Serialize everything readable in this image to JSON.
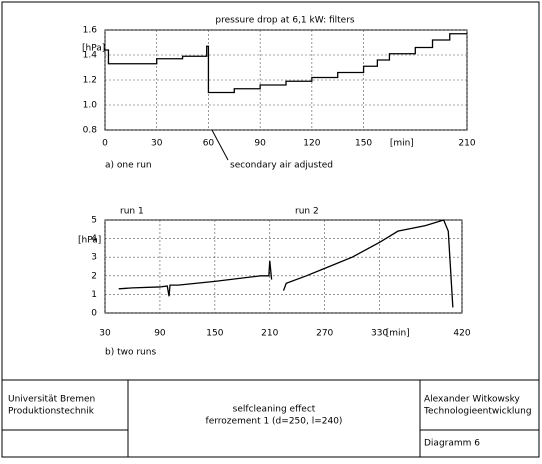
{
  "chart_data": [
    {
      "type": "line",
      "title": "pressure drop at 6,1 kW: filters",
      "y_label": "[hPa]",
      "x_label": "[min]",
      "subtitle": "a) one run",
      "annotation": "secondary air adjusted",
      "xlim": [
        0,
        210
      ],
      "xticks": [
        0,
        30,
        60,
        90,
        120,
        150,
        210
      ],
      "ylim": [
        0.8,
        1.6
      ],
      "yticks": [
        0.8,
        {
          "value": 1,
          "label": "1.0"
        },
        1.2,
        1.4,
        1.6
      ],
      "grid": true,
      "color": "#000000",
      "x": [
        0,
        2,
        2,
        30,
        30,
        45,
        45,
        59,
        59,
        60,
        60,
        75,
        75,
        90,
        90,
        105,
        105,
        120,
        120,
        135,
        135,
        150,
        150,
        158,
        158,
        165,
        165,
        180,
        180,
        190,
        190,
        200,
        200,
        210
      ],
      "values": [
        1.44,
        1.44,
        1.33,
        1.33,
        1.37,
        1.37,
        1.39,
        1.39,
        1.47,
        1.47,
        1.1,
        1.1,
        1.13,
        1.13,
        1.16,
        1.16,
        1.19,
        1.19,
        1.22,
        1.22,
        1.26,
        1.26,
        1.31,
        1.31,
        1.36,
        1.36,
        1.41,
        1.41,
        1.46,
        1.46,
        1.52,
        1.52,
        1.57,
        1.57
      ]
    },
    {
      "type": "line",
      "y_label": "[hPa]",
      "x_label": "[min]",
      "subtitle": "b) two runs",
      "annotations": [
        "run 1",
        "run 2"
      ],
      "xlim": [
        30,
        420
      ],
      "xticks": [
        30,
        90,
        150,
        210,
        270,
        330,
        420
      ],
      "ylim": [
        0,
        5
      ],
      "yticks": [
        0,
        1,
        2,
        3,
        4,
        5
      ],
      "grid": true,
      "color": "#000000",
      "x": [
        45,
        60,
        90,
        98,
        100,
        101,
        110,
        150,
        200,
        209,
        210,
        212,
        218,
        225,
        228,
        250,
        270,
        300,
        330,
        350,
        380,
        400,
        405,
        410
      ],
      "values": [
        1.3,
        1.35,
        1.4,
        1.45,
        0.9,
        1.5,
        1.5,
        1.7,
        2.0,
        2.0,
        2.8,
        1.8,
        null,
        1.2,
        1.6,
        2.0,
        2.4,
        3.0,
        3.8,
        4.4,
        4.7,
        5.0,
        4.4,
        0.3
      ]
    }
  ],
  "title_block": {
    "institution": [
      "Universität Bremen",
      "Produktionstechnik"
    ],
    "subject": [
      "selfcleaning effect",
      "ferrozement 1 (d=250, l=240)"
    ],
    "author": [
      "Alexander Witkowsky",
      "Technologieentwicklung"
    ],
    "sheet": "Diagramm 6"
  }
}
